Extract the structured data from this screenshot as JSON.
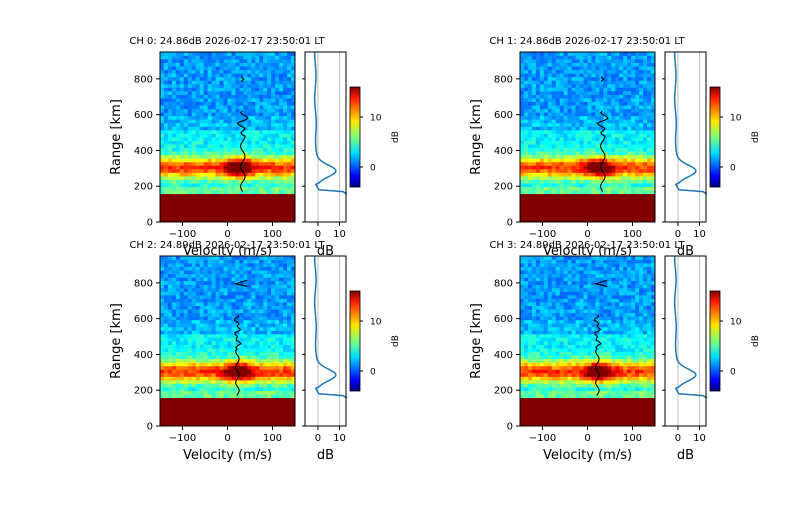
{
  "chart_data": [
    {
      "type": "heatmap",
      "panel": "spectrum",
      "title": "CH 0: 24.86dB 2026-02-17 23:50:01 LT",
      "xlabel": "Velocity (m/s)",
      "ylabel": "Range [km]",
      "xlim": [
        -150,
        150
      ],
      "ylim": [
        0,
        950
      ],
      "xticks": [
        -100,
        0,
        100
      ],
      "yticks": [
        0,
        200,
        400,
        600,
        800
      ],
      "profile": {
        "xlabel": "dB",
        "xlim": [
          -6,
          13
        ],
        "xticks": [
          0,
          10
        ]
      },
      "colorbar": {
        "label": "dB",
        "range": [
          -4,
          16
        ],
        "ticks": [
          0,
          10
        ]
      },
      "doppler_line_variant": 0
    },
    {
      "type": "heatmap",
      "panel": "spectrum",
      "title": "CH 1: 24.86dB 2026-02-17 23:50:01 LT",
      "xlabel": "Velocity (m/s)",
      "ylabel": "Range [km]",
      "xlim": [
        -150,
        150
      ],
      "ylim": [
        0,
        950
      ],
      "xticks": [
        -100,
        0,
        100
      ],
      "yticks": [
        0,
        200,
        400,
        600,
        800
      ],
      "profile": {
        "xlabel": "dB",
        "xlim": [
          -6,
          13
        ],
        "xticks": [
          0,
          10
        ]
      },
      "colorbar": {
        "label": "dB",
        "range": [
          -4,
          16
        ],
        "ticks": [
          0,
          10
        ]
      },
      "doppler_line_variant": 0
    },
    {
      "type": "heatmap",
      "panel": "spectrum",
      "title": "CH 2: 24.89dB 2026-02-17 23:50:01 LT",
      "xlabel": "Velocity (m/s)",
      "ylabel": "Range [km]",
      "xlim": [
        -150,
        150
      ],
      "ylim": [
        0,
        950
      ],
      "xticks": [
        -100,
        0,
        100
      ],
      "yticks": [
        0,
        200,
        400,
        600,
        800
      ],
      "profile": {
        "xlabel": "dB",
        "xlim": [
          -6,
          13
        ],
        "xticks": [
          0,
          10
        ]
      },
      "colorbar": {
        "label": "dB",
        "range": [
          -4,
          16
        ],
        "ticks": [
          0,
          10
        ]
      },
      "doppler_line_variant": 1
    },
    {
      "type": "heatmap",
      "panel": "spectrum",
      "title": "CH 3: 24.89dB 2026-02-17 23:50:01 LT",
      "xlabel": "Velocity (m/s)",
      "ylabel": "Range [km]",
      "xlim": [
        -150,
        150
      ],
      "ylim": [
        0,
        950
      ],
      "xticks": [
        -100,
        0,
        100
      ],
      "yticks": [
        0,
        200,
        400,
        600,
        800
      ],
      "profile": {
        "xlabel": "dB",
        "xlim": [
          -6,
          13
        ],
        "xticks": [
          0,
          10
        ]
      },
      "colorbar": {
        "label": "dB",
        "range": [
          -4,
          16
        ],
        "ticks": [
          0,
          10
        ]
      },
      "doppler_line_variant": 1
    }
  ]
}
